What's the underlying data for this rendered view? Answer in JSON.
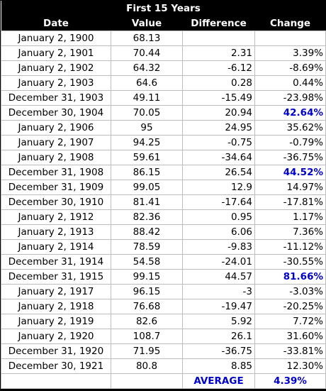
{
  "title": "First 15 Years",
  "headers": [
    "Date",
    "Value",
    "Difference",
    "Change"
  ],
  "highlight_color": "#0000cc",
  "rows": [
    {
      "date": "January 2, 1900",
      "value": "68.13",
      "difference": "",
      "change": ""
    },
    {
      "date": "January 2, 1901",
      "value": "70.44",
      "difference": "2.31",
      "change": "3.39%"
    },
    {
      "date": "January 2, 1902",
      "value": "64.32",
      "difference": "-6.12",
      "change": "-8.69%"
    },
    {
      "date": "January 2, 1903",
      "value": "64.6",
      "difference": "0.28",
      "change": "0.44%"
    },
    {
      "date": "December 31, 1903",
      "value": "49.11",
      "difference": "-15.49",
      "change": "-23.98%"
    },
    {
      "date": "December 30, 1904",
      "value": "70.05",
      "difference": "20.94",
      "change": "42.64%",
      "highlight": true
    },
    {
      "date": "January 2, 1906",
      "value": "95",
      "difference": "24.95",
      "change": "35.62%"
    },
    {
      "date": "January 2, 1907",
      "value": "94.25",
      "difference": "-0.75",
      "change": "-0.79%"
    },
    {
      "date": "January 2, 1908",
      "value": "59.61",
      "difference": "-34.64",
      "change": "-36.75%"
    },
    {
      "date": "December 31, 1908",
      "value": "86.15",
      "difference": "26.54",
      "change": "44.52%",
      "highlight": true
    },
    {
      "date": "December 31, 1909",
      "value": "99.05",
      "difference": "12.9",
      "change": "14.97%"
    },
    {
      "date": "December 30, 1910",
      "value": "81.41",
      "difference": "-17.64",
      "change": "-17.81%"
    },
    {
      "date": "January 2, 1912",
      "value": "82.36",
      "difference": "0.95",
      "change": "1.17%"
    },
    {
      "date": "January 2, 1913",
      "value": "88.42",
      "difference": "6.06",
      "change": "7.36%"
    },
    {
      "date": "January 2, 1914",
      "value": "78.59",
      "difference": "-9.83",
      "change": "-11.12%"
    },
    {
      "date": "December 31, 1914",
      "value": "54.58",
      "difference": "-24.01",
      "change": "-30.55%"
    },
    {
      "date": "December 31, 1915",
      "value": "99.15",
      "difference": "44.57",
      "change": "81.66%",
      "highlight": true
    },
    {
      "date": "January 2, 1917",
      "value": "96.15",
      "difference": "-3",
      "change": "-3.03%"
    },
    {
      "date": "January 2, 1918",
      "value": "76.68",
      "difference": "-19.47",
      "change": "-20.25%"
    },
    {
      "date": "January 2, 1919",
      "value": "82.6",
      "difference": "5.92",
      "change": "7.72%"
    },
    {
      "date": "January 2, 1920",
      "value": "108.7",
      "difference": "26.1",
      "change": "31.60%"
    },
    {
      "date": "December 31, 1920",
      "value": "71.95",
      "difference": "-36.75",
      "change": "-33.81%"
    },
    {
      "date": "December 30, 1921",
      "value": "80.8",
      "difference": "8.85",
      "change": "12.30%"
    }
  ],
  "average": {
    "label": "AVERAGE",
    "value": "4.39%"
  }
}
